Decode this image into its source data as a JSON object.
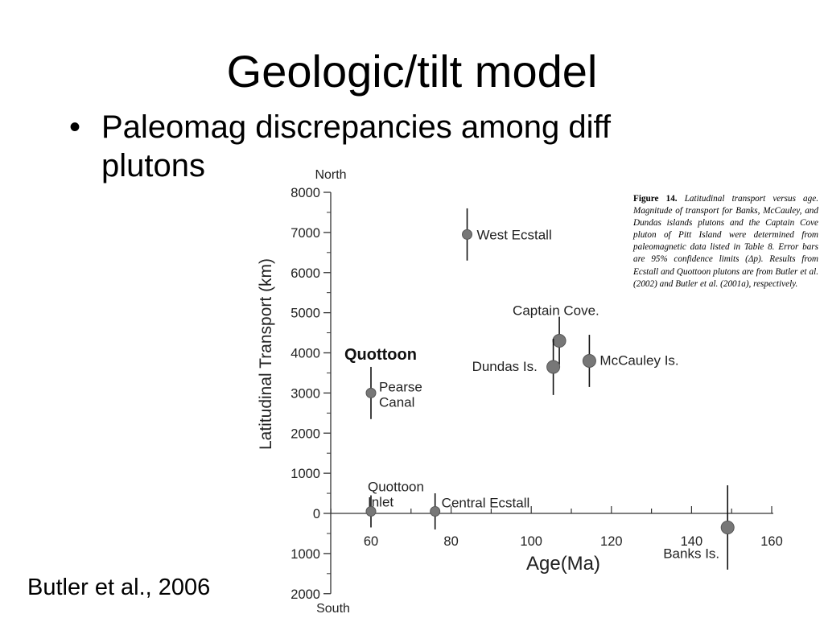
{
  "slide": {
    "title": "Geologic/tilt model",
    "bullet_marker": "•",
    "bullet_text": "Paleomag discrepancies among diff plutons",
    "citation": "Butler et al., 2006"
  },
  "caption": {
    "label": "Figure 14.",
    "text": " Latitudinal transport versus age. Magnitude of transport for Banks, McCauley, and Dundas islands plutons and the Captain Cove pluton of Pitt Island were determined from paleomagnetic data listed in Table 8. Error bars are 95% confidence limits (Δp). Results from Ecstall and Quottoon plutons are from Butler et al. (2002) and Butler et al. (2001a), respectively."
  },
  "chart_data": {
    "type": "scatter",
    "xlabel": "Age(Ma)",
    "ylabel": "Latitudinal Transport (km)",
    "y_top_label": "North",
    "y_bottom_label": "South",
    "xlim": [
      60,
      160
    ],
    "ylim": [
      -2000,
      8000
    ],
    "x_ticks": [
      60,
      80,
      100,
      120,
      140,
      160
    ],
    "y_ticks": [
      {
        "value": 8000,
        "label": "8000"
      },
      {
        "value": 7000,
        "label": "7000"
      },
      {
        "value": 6000,
        "label": "6000"
      },
      {
        "value": 5000,
        "label": "5000"
      },
      {
        "value": 4000,
        "label": "4000"
      },
      {
        "value": 3000,
        "label": "3000"
      },
      {
        "value": 2000,
        "label": "2000"
      },
      {
        "value": 1000,
        "label": "1000"
      },
      {
        "value": 0,
        "label": "0"
      },
      {
        "value": -1000,
        "label": "1000"
      },
      {
        "value": -2000,
        "label": "2000"
      }
    ],
    "group_label": "Quottoon",
    "points": [
      {
        "name": "West Ecstall",
        "x": 84,
        "y": 6950,
        "err": 650,
        "size": "small"
      },
      {
        "name": "Pearse Canal",
        "label_lines": [
          "Pearse",
          "Canal"
        ],
        "x": 60,
        "y": 3000,
        "err": 650,
        "size": "small"
      },
      {
        "name": "Captain Cove.",
        "x": 107,
        "y": 4300,
        "err": 600,
        "size": "large"
      },
      {
        "name": "Dundas Is.",
        "x": 105.5,
        "y": 3650,
        "err": 700,
        "size": "large"
      },
      {
        "name": "McCauley Is.",
        "x": 114.5,
        "y": 3800,
        "err": 650,
        "size": "large"
      },
      {
        "name": "Quottoon Inlet",
        "label_lines": [
          "Quottoon",
          "Inlet"
        ],
        "x": 60,
        "y": 50,
        "err": 400,
        "size": "small"
      },
      {
        "name": "Central Ecstall",
        "x": 76,
        "y": 50,
        "err": 450,
        "size": "small"
      },
      {
        "name": "Banks Is.",
        "x": 149,
        "y": -350,
        "err": 1050,
        "size": "large"
      }
    ]
  }
}
